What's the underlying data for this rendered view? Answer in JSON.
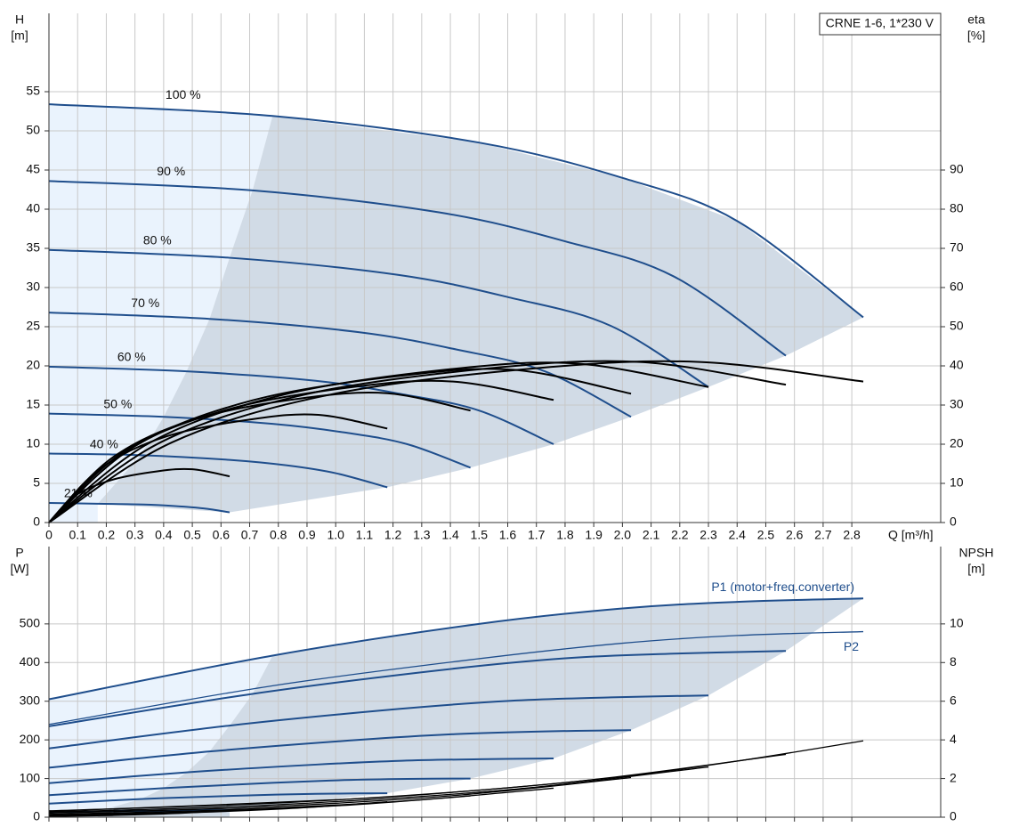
{
  "chart_data": [
    {
      "type": "line",
      "annotation": "CRNE 1-6, 1*230 V",
      "ylabel": [
        "H",
        "[m]"
      ],
      "y2label": [
        "eta",
        "[%]"
      ],
      "xlabel": "Q [m³/h]",
      "xlim": [
        0,
        3.11
      ],
      "ylim": [
        0,
        65
      ],
      "y2lim": [
        0,
        130
      ],
      "xticks": [
        0,
        0.1,
        0.2,
        0.3,
        0.4,
        0.5,
        0.6,
        0.7,
        0.8,
        0.9,
        {
          "value": 1,
          "label": "1.0"
        },
        1.1,
        1.2,
        1.3,
        1.4,
        1.5,
        1.6,
        1.7,
        1.8,
        1.9,
        {
          "value": 2,
          "label": "2.0"
        },
        2.1,
        2.2,
        2.3,
        2.4,
        2.5,
        2.6,
        2.7,
        2.8
      ],
      "yticks": [
        0,
        5,
        10,
        15,
        20,
        25,
        30,
        35,
        40,
        45,
        50,
        55
      ],
      "y2ticks": [
        0,
        10,
        20,
        30,
        40,
        50,
        60,
        70,
        80,
        90
      ],
      "grid": true,
      "series": [
        {
          "name": "100 %",
          "color": "#1f4e8c",
          "x": [
            0,
            0.78,
            1.5,
            2.0,
            2.4,
            2.84
          ],
          "values": [
            53.4,
            51.9,
            48.5,
            44,
            38.5,
            26.2
          ]
        },
        {
          "name": "90 %",
          "color": "#1f4e8c",
          "x": [
            0,
            0.71,
            1.36,
            1.8,
            2.18,
            2.57
          ],
          "values": [
            43.6,
            42.4,
            39.6,
            35.9,
            31.4,
            21.3
          ]
        },
        {
          "name": "80 %",
          "color": "#1f4e8c",
          "x": [
            0,
            0.63,
            1.22,
            1.61,
            1.96,
            2.3
          ],
          "values": [
            34.8,
            33.8,
            31.6,
            28.7,
            25.1,
            17.3
          ]
        },
        {
          "name": "70 %",
          "color": "#1f4e8c",
          "x": [
            0,
            0.56,
            1.08,
            1.42,
            1.73,
            2.03
          ],
          "values": [
            26.8,
            26.0,
            24.3,
            22.1,
            19.3,
            13.5
          ]
        },
        {
          "name": "60 %",
          "color": "#1f4e8c",
          "x": [
            0,
            0.48,
            0.93,
            1.23,
            1.5,
            1.76
          ],
          "values": [
            19.9,
            19.3,
            18.1,
            16.4,
            14.3,
            10.0
          ]
        },
        {
          "name": "50 %",
          "color": "#1f4e8c",
          "x": [
            0,
            0.4,
            0.78,
            1.03,
            1.25,
            1.47
          ],
          "values": [
            13.9,
            13.5,
            12.6,
            11.5,
            10.0,
            7.0
          ]
        },
        {
          "name": "40 %",
          "color": "#1f4e8c",
          "x": [
            0,
            0.32,
            0.63,
            0.83,
            1.0,
            1.18
          ],
          "values": [
            8.8,
            8.6,
            8.0,
            7.3,
            6.3,
            4.5
          ]
        },
        {
          "name": "21 %",
          "color": "#1f4e8c",
          "x": [
            0,
            0.17,
            0.33,
            0.44,
            0.54,
            0.63
          ],
          "values": [
            2.5,
            2.4,
            2.3,
            2.1,
            1.8,
            1.3
          ]
        },
        {
          "color": "#000000",
          "axis": "y2",
          "x": [
            0,
            0.43,
            0.99,
            1.7,
            2.27,
            2.84
          ],
          "values": [
            0,
            20.5,
            32.8,
            39.4,
            41,
            36
          ]
        },
        {
          "color": "#000000",
          "axis": "y2",
          "x": [
            0,
            0.39,
            0.9,
            1.54,
            2.06,
            2.57
          ],
          "values": [
            0,
            20.5,
            32.8,
            39.4,
            41,
            35.2
          ]
        },
        {
          "color": "#000000",
          "axis": "y2",
          "x": [
            0,
            0.35,
            0.81,
            1.38,
            1.84,
            2.3
          ],
          "values": [
            0,
            20.3,
            32.5,
            39.0,
            40.6,
            34.6
          ]
        },
        {
          "color": "#000000",
          "axis": "y2",
          "x": [
            0,
            0.3,
            0.71,
            1.22,
            1.62,
            2.03
          ],
          "values": [
            0,
            19.5,
            31.2,
            37.4,
            39,
            32.9
          ]
        },
        {
          "color": "#000000",
          "axis": "y2",
          "x": [
            0,
            0.26,
            0.62,
            1.06,
            1.41,
            1.76
          ],
          "values": [
            0,
            18,
            28.8,
            34.6,
            36,
            31.3
          ]
        },
        {
          "color": "#000000",
          "axis": "y2",
          "x": [
            0,
            0.22,
            0.51,
            0.88,
            1.18,
            1.47
          ],
          "values": [
            0,
            16.5,
            26.4,
            31.7,
            33,
            28.6
          ]
        },
        {
          "color": "#000000",
          "axis": "y2",
          "x": [
            0,
            0.18,
            0.41,
            0.71,
            0.94,
            1.18
          ],
          "values": [
            0,
            13.8,
            22,
            26.4,
            27.5,
            24
          ]
        },
        {
          "color": "#000000",
          "axis": "y2",
          "x": [
            0,
            0.09,
            0.22,
            0.38,
            0.5,
            0.63
          ],
          "values": [
            0,
            6.8,
            10.9,
            13.1,
            13.6,
            11.8
          ]
        }
      ]
    },
    {
      "type": "line",
      "ylabel": [
        "P",
        "[W]"
      ],
      "y2label": [
        "NPSH",
        "[m]"
      ],
      "xlim": [
        0,
        3.11
      ],
      "ylim": [
        0,
        700
      ],
      "y2lim": [
        0,
        14
      ],
      "yticks": [
        0,
        100,
        200,
        300,
        400,
        500
      ],
      "y2ticks": [
        0,
        2,
        4,
        6,
        8,
        10
      ],
      "grid": true,
      "series": [
        {
          "name": "P1 (motor+freq.converter)",
          "color": "#1f4e8c",
          "x": [
            0,
            0.78,
            1.5,
            2.0,
            2.4,
            2.84
          ],
          "values": [
            305,
            418,
            500,
            540,
            557,
            566
          ]
        },
        {
          "color": "#1f4e8c",
          "x": [
            0,
            0.71,
            1.36,
            1.8,
            2.18,
            2.57
          ],
          "values": [
            235,
            319,
            380,
            411,
            423,
            430
          ]
        },
        {
          "color": "#1f4e8c",
          "x": [
            0,
            0.63,
            1.22,
            1.61,
            1.96,
            2.3
          ],
          "values": [
            178,
            237,
            280,
            301,
            310,
            315
          ]
        },
        {
          "color": "#1f4e8c",
          "x": [
            0,
            0.56,
            1.08,
            1.42,
            1.73,
            2.03
          ],
          "values": [
            128,
            170,
            200,
            215,
            222,
            225
          ]
        },
        {
          "color": "#1f4e8c",
          "x": [
            0,
            0.48,
            0.93,
            1.23,
            1.5,
            1.76
          ],
          "values": [
            88,
            116,
            136,
            146,
            150,
            152
          ]
        },
        {
          "color": "#1f4e8c",
          "x": [
            0,
            0.4,
            0.78,
            1.03,
            1.25,
            1.47
          ],
          "values": [
            57,
            75,
            89,
            96,
            99,
            100
          ]
        },
        {
          "color": "#1f4e8c",
          "x": [
            0,
            0.32,
            0.63,
            0.83,
            1.0,
            1.18
          ],
          "values": [
            35,
            47,
            55,
            59,
            61,
            62
          ]
        },
        {
          "color": "#1f4e8c",
          "x": [
            0,
            0.17,
            0.33,
            0.44,
            0.54,
            0.63
          ],
          "values": [
            12,
            15,
            16,
            17,
            18,
            18
          ]
        },
        {
          "name": "P2",
          "color": "#1f4e8c",
          "x": [
            0,
            0.78,
            1.5,
            2.0,
            2.4,
            2.84
          ],
          "values": [
            240,
            340,
            410,
            450,
            470,
            480
          ]
        },
        {
          "color": "#000000",
          "axis": "y2",
          "x": [
            0,
            1.0,
            1.5,
            2.0,
            2.4,
            2.84
          ],
          "values": [
            0.3,
            0.9,
            1.4,
            2.1,
            2.9,
            3.95
          ]
        },
        {
          "color": "#000000",
          "axis": "y2",
          "x": [
            0,
            0.9,
            1.8,
            2.57
          ],
          "values": [
            0.33,
            0.81,
            1.79,
            3.25
          ]
        },
        {
          "color": "#000000",
          "axis": "y2",
          "x": [
            0,
            0.8,
            1.61,
            2.3
          ],
          "values": [
            0.26,
            0.65,
            1.43,
            2.6
          ]
        },
        {
          "color": "#000000",
          "axis": "y2",
          "x": [
            0,
            0.71,
            1.42,
            2.03
          ],
          "values": [
            0.21,
            0.51,
            1.13,
            2.05
          ]
        },
        {
          "color": "#000000",
          "axis": "y2",
          "x": [
            0,
            0.62,
            1.23,
            1.76
          ],
          "values": [
            0.15,
            0.38,
            0.83,
            1.5
          ]
        },
        {
          "color": "#000000",
          "axis": "y2",
          "x": [
            0,
            0.51,
            1.03,
            1.47
          ],
          "values": [
            0.11,
            0.28,
            0.61,
            1.1
          ]
        },
        {
          "color": "#000000",
          "axis": "y2",
          "x": [
            0,
            0.41,
            0.83,
            1.18
          ],
          "values": [
            0.08,
            0.2,
            0.44,
            0.8
          ]
        },
        {
          "color": "#000000",
          "axis": "y2",
          "x": [
            0,
            0.22,
            0.44,
            0.63
          ],
          "values": [
            0.04,
            0.09,
            0.19,
            0.35
          ]
        }
      ]
    }
  ]
}
